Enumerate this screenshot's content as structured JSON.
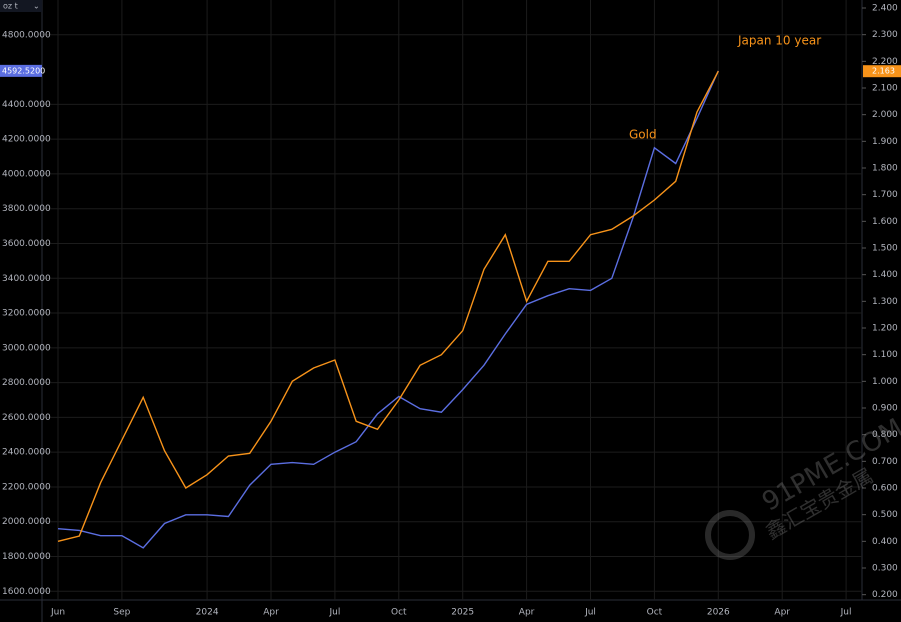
{
  "chart_data": {
    "type": "line",
    "unit_selector": "oz t",
    "categories": [
      "Jun",
      null,
      null,
      "Sep",
      null,
      null,
      null,
      "2024",
      null,
      null,
      "Apr",
      null,
      null,
      "Jul",
      null,
      null,
      "Oct",
      null,
      null,
      "2025",
      null,
      null,
      "Apr",
      null,
      null,
      "Jul",
      null,
      null,
      "Oct",
      null,
      null,
      "2026",
      null,
      null,
      "Apr",
      null,
      null,
      "Jul"
    ],
    "series": [
      {
        "color": "#5b6ee1",
        "axis": "y",
        "last_value_label": "4592.5200",
        "values": [
          1960,
          1950,
          1920,
          1920,
          1850,
          1990,
          2040,
          2040,
          2030,
          2210,
          2330,
          2340,
          2330,
          2400,
          2460,
          2620,
          2720,
          2650,
          2630,
          2760,
          2900,
          3080,
          3250,
          3300,
          3340,
          3330,
          3400,
          3750,
          4150,
          4060,
          4320,
          4592.52,
          null,
          null,
          null,
          null,
          null,
          null
        ]
      },
      {
        "color": "#f7931a",
        "axis": "y2",
        "last_value_label": "2.163",
        "values": [
          0.4,
          0.42,
          0.62,
          0.78,
          0.94,
          0.74,
          0.6,
          0.65,
          0.72,
          0.73,
          0.85,
          1.0,
          1.05,
          1.08,
          0.85,
          0.82,
          0.93,
          1.06,
          1.1,
          1.19,
          1.42,
          1.55,
          1.3,
          1.45,
          1.45,
          1.55,
          1.57,
          1.62,
          1.68,
          1.75,
          2.01,
          2.163,
          null,
          null,
          null,
          null,
          null,
          null
        ]
      }
    ],
    "ylim": [
      1550,
      5000
    ],
    "yticks": [
      {
        "value": 1600,
        "label": "1600.0000"
      },
      {
        "value": 1800,
        "label": "1800.0000"
      },
      {
        "value": 2000,
        "label": "2000.0000"
      },
      {
        "value": 2200,
        "label": "2200.0000"
      },
      {
        "value": 2400,
        "label": "2400.0000"
      },
      {
        "value": 2600,
        "label": "2600.0000"
      },
      {
        "value": 2800,
        "label": "2800.0000"
      },
      {
        "value": 3000,
        "label": "3000.0000"
      },
      {
        "value": 3200,
        "label": "3200.0000"
      },
      {
        "value": 3400,
        "label": "3400.0000"
      },
      {
        "value": 3600,
        "label": "3600.0000"
      },
      {
        "value": 3800,
        "label": "3800.0000"
      },
      {
        "value": 4000,
        "label": "4000.0000"
      },
      {
        "value": 4200,
        "label": "4200.0000"
      },
      {
        "value": 4400,
        "label": "4400.0000"
      },
      {
        "value": 4800,
        "label": "4800.0000"
      }
    ],
    "y2lim": [
      0.18,
      2.43
    ],
    "y2ticks": [
      {
        "value": 0.2,
        "label": "0.200"
      },
      {
        "value": 0.3,
        "label": "0.300"
      },
      {
        "value": 0.4,
        "label": "0.400"
      },
      {
        "value": 0.5,
        "label": "0.500"
      },
      {
        "value": 0.6,
        "label": "0.600"
      },
      {
        "value": 0.7,
        "label": "0.700"
      },
      {
        "value": 0.8,
        "label": "0.800"
      },
      {
        "value": 0.9,
        "label": "0.900"
      },
      {
        "value": 1,
        "label": "1.000"
      },
      {
        "value": 1.1,
        "label": "1.100"
      },
      {
        "value": 1.2,
        "label": "1.200"
      },
      {
        "value": 1.3,
        "label": "1.300"
      },
      {
        "value": 1.4,
        "label": "1.400"
      },
      {
        "value": 1.5,
        "label": "1.500"
      },
      {
        "value": 1.6,
        "label": "1.600"
      },
      {
        "value": 1.7,
        "label": "1.700"
      },
      {
        "value": 1.8,
        "label": "1.800"
      },
      {
        "value": 1.9,
        "label": "1.900"
      },
      {
        "value": 2,
        "label": "2.000"
      },
      {
        "value": 2.1,
        "label": "2.100"
      },
      {
        "value": 2.2,
        "label": "2.200"
      },
      {
        "value": 2.3,
        "label": "2.300"
      },
      {
        "value": 2.4,
        "label": "2.400"
      }
    ],
    "grid": true,
    "annotations": [
      {
        "text": "Gold",
        "color": "#f7931a"
      },
      {
        "text": "Japan 10 year",
        "color": "#f7931a"
      }
    ],
    "watermark": [
      "91PME.COM",
      "鑫汇宝贵金属"
    ]
  }
}
